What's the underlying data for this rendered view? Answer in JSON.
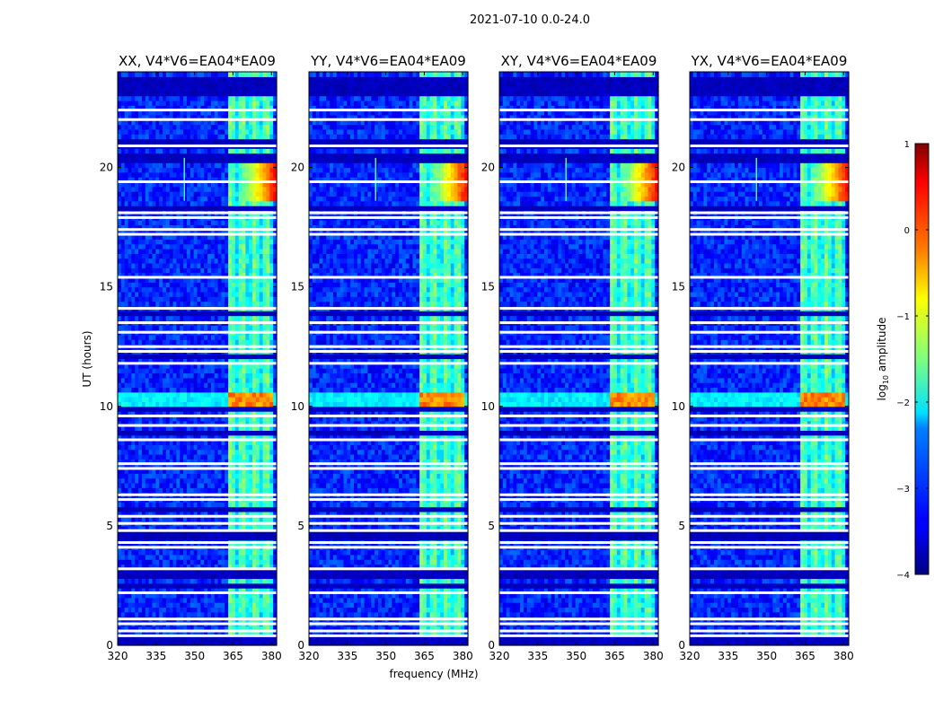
{
  "chart_data": {
    "type": "heatmap",
    "suptitle": "2021-07-10 0.0-24.0",
    "xlabel": "frequency (MHz)",
    "ylabel": "UT (hours)",
    "xlim": [
      320,
      382
    ],
    "ylim": [
      0,
      24
    ],
    "xticks": [
      320,
      335,
      350,
      365,
      380
    ],
    "xtick_labels": [
      "320",
      "335",
      "350",
      "365",
      "380"
    ],
    "yticks": [
      0,
      5,
      10,
      15,
      20
    ],
    "ytick_labels": [
      "0",
      "5",
      "10",
      "15",
      "20"
    ],
    "panels": [
      {
        "title": "XX, V4*V6=EA04*EA09",
        "polarization": "XX",
        "bright_line_hour": 19.0,
        "bright_line_mhz": 346
      },
      {
        "title": "YY, V4*V6=EA04*EA09",
        "polarization": "YY",
        "bright_line_hour": 19.0,
        "bright_line_mhz": 346
      },
      {
        "title": "XY, V4*V6=EA04*EA09",
        "polarization": "XY",
        "bright_line_hour": 19.0,
        "bright_line_mhz": 346
      },
      {
        "title": "YX, V4*V6=EA04*EA09",
        "polarization": "YX",
        "bright_line_hour": 19.0,
        "bright_line_mhz": 346
      }
    ],
    "colorbar": {
      "label_prefix": "log",
      "label_sub": "10",
      "label_suffix": " amplitude",
      "range": [
        -4,
        1
      ],
      "ticks": [
        1,
        0,
        -1,
        -2,
        -3,
        -4
      ],
      "tick_labels": [
        "1",
        "0",
        "−1",
        "−2",
        "−3",
        "−4"
      ],
      "colormap": "jet"
    },
    "features": {
      "band_mhz": [
        363,
        380
      ],
      "band_level": -1.9,
      "background_level": -3.2,
      "bright_burst_hours": [
        18.6,
        20.6
      ],
      "bright_burst_band_mhz": [
        370,
        382
      ],
      "bright_burst_level": 0.4,
      "hot_rows_hours": [
        10.1,
        10.5
      ],
      "hot_rows_level": -0.3,
      "flagged_rows_hours": [
        0.4,
        0.6,
        0.9,
        1.1,
        2.2,
        3.2,
        4.1,
        4.3,
        4.8,
        5.1,
        5.4,
        6.1,
        6.3,
        7.4,
        7.6,
        8.6,
        9.2,
        9.6,
        11.8,
        12.3,
        12.5,
        13.1,
        13.5,
        14.1,
        15.4,
        17.2,
        17.4,
        17.9,
        18.1,
        19.4,
        20.9,
        22.0,
        22.4
      ],
      "dark_rows_hours": [
        0.2,
        2.5,
        3.0,
        4.6,
        5.7,
        8.9,
        9.9,
        12.1,
        13.9,
        18.3,
        20.4,
        21.0,
        23.2,
        23.6
      ]
    }
  }
}
